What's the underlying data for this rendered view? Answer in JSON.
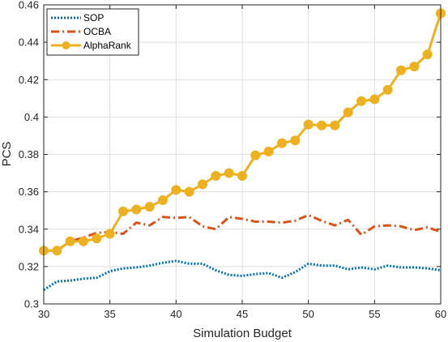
{
  "chart_data": {
    "type": "line",
    "title": "",
    "xlabel": "Simulation Budget",
    "ylabel": "PCS",
    "xlim": [
      30,
      60
    ],
    "ylim": [
      0.3,
      0.46
    ],
    "xticks": [
      30,
      35,
      40,
      45,
      50,
      55,
      60
    ],
    "xtick_labels": [
      "30",
      "35",
      "40",
      "45",
      "50",
      "55",
      "60"
    ],
    "yticks": [
      0.3,
      0.32,
      0.34,
      0.36,
      0.38,
      0.4,
      0.42,
      0.44,
      0.46
    ],
    "ytick_labels": [
      "0.3",
      "0.32",
      "0.34",
      "0.36",
      "0.38",
      "0.4",
      "0.42",
      "0.44",
      "0.46"
    ],
    "grid": true,
    "legend_position": "top-left",
    "x": [
      30,
      31,
      32,
      33,
      34,
      35,
      36,
      37,
      38,
      39,
      40,
      41,
      42,
      43,
      44,
      45,
      46,
      47,
      48,
      49,
      50,
      51,
      52,
      53,
      54,
      55,
      56,
      57,
      58,
      59,
      60
    ],
    "series": [
      {
        "name": "SOP",
        "color": "#0072BD",
        "style": "dotted",
        "marker": "none",
        "values": [
          0.3075,
          0.312,
          0.3125,
          0.3135,
          0.314,
          0.3175,
          0.319,
          0.3195,
          0.3205,
          0.322,
          0.323,
          0.3215,
          0.3215,
          0.318,
          0.3155,
          0.315,
          0.316,
          0.3165,
          0.314,
          0.317,
          0.3215,
          0.3205,
          0.3205,
          0.3185,
          0.3195,
          0.3185,
          0.3205,
          0.3195,
          0.3195,
          0.319,
          0.318
        ]
      },
      {
        "name": "OCBA",
        "color": "#D95319",
        "style": "dashdot",
        "marker": "none",
        "values": [
          0.3285,
          0.3285,
          0.3335,
          0.3355,
          0.338,
          0.3385,
          0.3375,
          0.3435,
          0.342,
          0.3465,
          0.346,
          0.3465,
          0.3415,
          0.34,
          0.3465,
          0.3455,
          0.344,
          0.344,
          0.3435,
          0.3445,
          0.3475,
          0.3445,
          0.342,
          0.345,
          0.337,
          0.3415,
          0.342,
          0.3415,
          0.3395,
          0.341,
          0.3385
        ]
      },
      {
        "name": "AlphaRank",
        "color": "#EDB120",
        "style": "solid",
        "marker": "circle",
        "values": [
          0.3285,
          0.3285,
          0.3335,
          0.3335,
          0.335,
          0.3375,
          0.3495,
          0.3505,
          0.352,
          0.3555,
          0.361,
          0.36,
          0.364,
          0.3685,
          0.37,
          0.3685,
          0.3795,
          0.3815,
          0.386,
          0.3875,
          0.396,
          0.3955,
          0.3955,
          0.4025,
          0.4085,
          0.4095,
          0.4145,
          0.425,
          0.427,
          0.4335,
          0.4555
        ]
      }
    ]
  }
}
